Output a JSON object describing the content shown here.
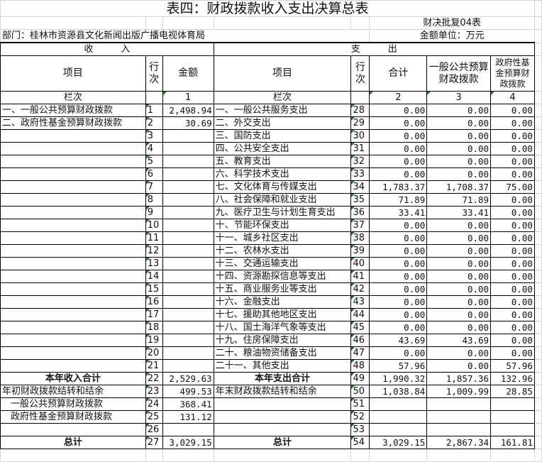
{
  "title": "表四：财政拨款收入支出决算总表",
  "form_code": "财决批复04表",
  "department": "部门：桂林市资源县文化新闻出版广播电视体育局",
  "unit": "金额单位：万元",
  "income_header": "收　　　入",
  "expense_header": "支　　　出",
  "columns": {
    "item": "项目",
    "line": "行次",
    "amount": "金额",
    "total": "合计",
    "general": "一般公共预算财政拨款",
    "fund": "政府性基金预算财政拨款"
  },
  "col_index": {
    "label": "栏次",
    "c1": "1",
    "c2": "2",
    "c3": "3",
    "c4": "4"
  },
  "rows": [
    {
      "in_label": "一、一般公共预算财政拨款",
      "in_line": "1",
      "in_amt": "2,498.94",
      "ex_label": "一、一般公共服务支出",
      "ex_line": "28",
      "total": "0.00",
      "general": "0.00",
      "fund": "0.00"
    },
    {
      "in_label": "二、政府性基金预算财政拨款",
      "in_line": "2",
      "in_amt": "30.69",
      "ex_label": "二、外交支出",
      "ex_line": "29",
      "total": "0.00",
      "general": "0.00",
      "fund": "0.00"
    },
    {
      "in_label": "",
      "in_line": "3",
      "in_amt": "",
      "ex_label": "三、国防支出",
      "ex_line": "30",
      "total": "0.00",
      "general": "0.00",
      "fund": "0.00"
    },
    {
      "in_label": "",
      "in_line": "4",
      "in_amt": "",
      "ex_label": "四、公共安全支出",
      "ex_line": "31",
      "total": "0.00",
      "general": "0.00",
      "fund": "0.00"
    },
    {
      "in_label": "",
      "in_line": "5",
      "in_amt": "",
      "ex_label": "五、教育支出",
      "ex_line": "32",
      "total": "0.00",
      "general": "0.00",
      "fund": "0.00"
    },
    {
      "in_label": "",
      "in_line": "6",
      "in_amt": "",
      "ex_label": "六、科学技术支出",
      "ex_line": "33",
      "total": "0.00",
      "general": "0.00",
      "fund": "0.00"
    },
    {
      "in_label": "",
      "in_line": "7",
      "in_amt": "",
      "ex_label": "七、文化体育与传媒支出",
      "ex_line": "34",
      "total": "1,783.37",
      "general": "1,708.37",
      "fund": "75.00"
    },
    {
      "in_label": "",
      "in_line": "8",
      "in_amt": "",
      "ex_label": "八、社会保障和就业支出",
      "ex_line": "35",
      "total": "71.89",
      "general": "71.89",
      "fund": "0.00"
    },
    {
      "in_label": "",
      "in_line": "9",
      "in_amt": "",
      "ex_label": "九、医疗卫生与计划生育支出",
      "ex_line": "36",
      "total": "33.41",
      "general": "33.41",
      "fund": "0.00"
    },
    {
      "in_label": "",
      "in_line": "10",
      "in_amt": "",
      "ex_label": "十、节能环保支出",
      "ex_line": "37",
      "total": "0.00",
      "general": "0.00",
      "fund": "0.00"
    },
    {
      "in_label": "",
      "in_line": "11",
      "in_amt": "",
      "ex_label": "十一、城乡社区支出",
      "ex_line": "38",
      "total": "0.00",
      "general": "0.00",
      "fund": "0.00"
    },
    {
      "in_label": "",
      "in_line": "12",
      "in_amt": "",
      "ex_label": "十二、农林水支出",
      "ex_line": "39",
      "total": "0.00",
      "general": "0.00",
      "fund": "0.00"
    },
    {
      "in_label": "",
      "in_line": "13",
      "in_amt": "",
      "ex_label": "十三、交通运输支出",
      "ex_line": "40",
      "total": "0.00",
      "general": "0.00",
      "fund": "0.00"
    },
    {
      "in_label": "",
      "in_line": "14",
      "in_amt": "",
      "ex_label": "十四、资源勘探信息等支出",
      "ex_line": "41",
      "total": "0.00",
      "general": "0.00",
      "fund": "0.00"
    },
    {
      "in_label": "",
      "in_line": "15",
      "in_amt": "",
      "ex_label": "十五、商业服务业等支出",
      "ex_line": "42",
      "total": "0.00",
      "general": "0.00",
      "fund": "0.00"
    },
    {
      "in_label": "",
      "in_line": "16",
      "in_amt": "",
      "ex_label": "十六、金融支出",
      "ex_line": "43",
      "total": "0.00",
      "general": "0.00",
      "fund": "0.00"
    },
    {
      "in_label": "",
      "in_line": "17",
      "in_amt": "",
      "ex_label": "十七、援助其他地区支出",
      "ex_line": "44",
      "total": "0.00",
      "general": "0.00",
      "fund": "0.00"
    },
    {
      "in_label": "",
      "in_line": "18",
      "in_amt": "",
      "ex_label": "十八、国土海洋气象等支出",
      "ex_line": "45",
      "total": "0.00",
      "general": "0.00",
      "fund": "0.00"
    },
    {
      "in_label": "",
      "in_line": "19",
      "in_amt": "",
      "ex_label": "十九、住房保障支出",
      "ex_line": "46",
      "total": "43.69",
      "general": "43.69",
      "fund": "0.00"
    },
    {
      "in_label": "",
      "in_line": "20",
      "in_amt": "",
      "ex_label": "二十、粮油物资储备支出",
      "ex_line": "47",
      "total": "0.00",
      "general": "0.00",
      "fund": "0.00"
    },
    {
      "in_label": "",
      "in_line": "21",
      "in_amt": "",
      "ex_label": "二十一、其他支出",
      "ex_line": "48",
      "total": "57.96",
      "general": "0.00",
      "fund": "57.96"
    },
    {
      "in_label": "本年收入合计",
      "in_line": "22",
      "in_amt": "2,529.63",
      "ex_label": "本年支出合计",
      "ex_line": "49",
      "total": "1,990.32",
      "general": "1,857.36",
      "fund": "132.96",
      "style": "bold"
    },
    {
      "in_label": "年初财政拨款结转和结余",
      "in_line": "23",
      "in_amt": "499.53",
      "ex_label": "年末财政拨款结转和结余",
      "ex_line": "50",
      "total": "1,038.84",
      "general": "1,009.99",
      "fund": "28.85"
    },
    {
      "in_label": "一般公共预算财政拨款",
      "in_line": "24",
      "in_amt": "368.41",
      "ex_label": "",
      "ex_line": "51",
      "total": "",
      "general": "",
      "fund": "",
      "style": "ind"
    },
    {
      "in_label": "政府性基金预算财政拨款",
      "in_line": "25",
      "in_amt": "131.12",
      "ex_label": "",
      "ex_line": "52",
      "total": "",
      "general": "",
      "fund": "",
      "style": "ind"
    },
    {
      "in_label": "",
      "in_line": "26",
      "in_amt": "",
      "ex_label": "",
      "ex_line": "53",
      "total": "",
      "general": "",
      "fund": ""
    },
    {
      "in_label": "总计",
      "in_line": "27",
      "in_amt": "3,029.15",
      "ex_label": "总计",
      "ex_line": "54",
      "total": "3,029.15",
      "general": "2,867.34",
      "fund": "161.81",
      "style": "bold"
    }
  ]
}
